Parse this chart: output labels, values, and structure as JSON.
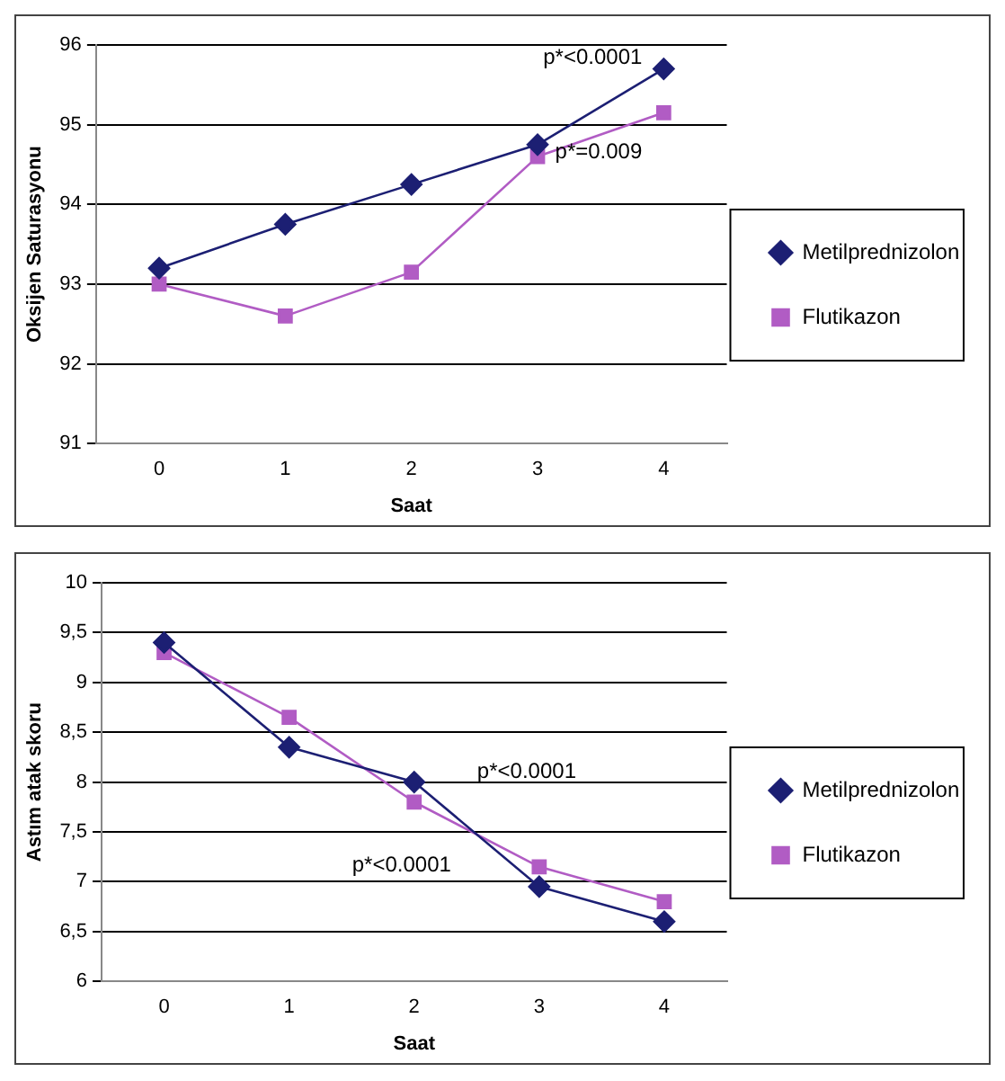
{
  "chart_data": [
    {
      "type": "line",
      "xlabel": "Saat",
      "ylabel": "Oksijen Saturasyonu",
      "categories": [
        "0",
        "1",
        "2",
        "3",
        "4"
      ],
      "series": [
        {
          "name": "Metilprednizolon",
          "color": "#1c1f73",
          "marker": "diamond",
          "values": [
            93.2,
            93.75,
            94.25,
            94.75,
            95.7
          ]
        },
        {
          "name": "Flutikazon",
          "color": "#b15cc4",
          "marker": "square",
          "values": [
            93.0,
            92.6,
            93.15,
            94.6,
            95.15
          ]
        }
      ],
      "ylim": [
        91,
        96
      ],
      "yticks": [
        91,
        92,
        93,
        94,
        95,
        96
      ],
      "grid": "y",
      "legend": "right",
      "annotations": [
        {
          "text": "p*<0.0001",
          "x": "4",
          "y": 95.7
        },
        {
          "text": "p*=0.009",
          "x": "4",
          "y": 95.15
        }
      ]
    },
    {
      "type": "line",
      "xlabel": "Saat",
      "ylabel": "Astım atak skoru",
      "categories": [
        "0",
        "1",
        "2",
        "3",
        "4"
      ],
      "series": [
        {
          "name": "Metilprednizolon",
          "color": "#1c1f73",
          "marker": "diamond",
          "values": [
            9.4,
            8.35,
            8.0,
            6.95,
            6.6
          ]
        },
        {
          "name": "Flutikazon",
          "color": "#b15cc4",
          "marker": "square",
          "values": [
            9.3,
            8.65,
            7.8,
            7.15,
            6.8
          ]
        }
      ],
      "ylim": [
        6,
        10
      ],
      "yticks": [
        6,
        {
          "value": 6.5,
          "label": "6,5"
        },
        7,
        {
          "value": 7.5,
          "label": "7,5"
        },
        8,
        {
          "value": 8.5,
          "label": "8,5"
        },
        9,
        {
          "value": 9.5,
          "label": "9,5"
        },
        10
      ],
      "grid": "y",
      "legend": "right",
      "annotations": [
        "p*<0.0001",
        "p*<0.0001"
      ]
    }
  ]
}
